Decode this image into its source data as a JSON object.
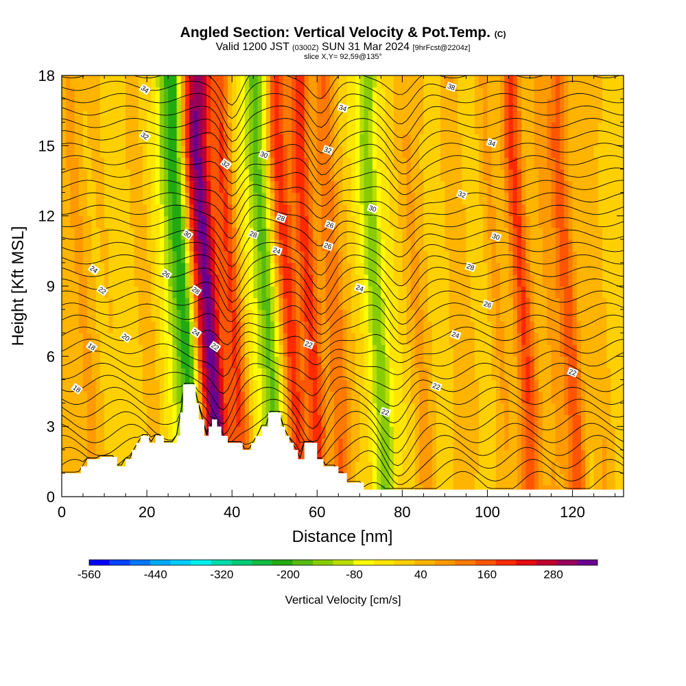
{
  "header": {
    "title": "Angled Section: Vertical Velocity & Pot.Temp.",
    "title_mark": "(C)",
    "valid_prefix": "Valid 1200 JST",
    "valid_zulu": "(0300Z)",
    "valid_date": "SUN 31 Mar 2024",
    "valid_fcst": "[9hrFcst@2204z]",
    "slice": "slice X,Y= 92,59@135°"
  },
  "chart_data": {
    "type": "heatmap",
    "xlabel": "Distance [nm]",
    "ylabel": "Height [Kft MSL]",
    "xlim": [
      0,
      132
    ],
    "ylim": [
      0,
      18
    ],
    "x_ticks": [
      "0",
      "20",
      "40",
      "60",
      "80",
      "100",
      "120"
    ],
    "x_tick_values": [
      0,
      20,
      40,
      60,
      80,
      100,
      120
    ],
    "y_ticks": [
      "0",
      "3",
      "6",
      "9",
      "12",
      "15",
      "18"
    ],
    "y_tick_values": [
      0,
      3,
      6,
      9,
      12,
      15,
      18
    ],
    "colorbar": {
      "label": "Vertical Velocity [cm/s]",
      "tick_labels": [
        "-560",
        "-440",
        "-320",
        "-200",
        "-80",
        "40",
        "160",
        "280"
      ],
      "tick_values": [
        -560,
        -440,
        -320,
        -200,
        -80,
        40,
        160,
        280
      ],
      "min": -560,
      "max": 360,
      "step": 40,
      "colors": [
        "#0000ff",
        "#0044ff",
        "#0077ff",
        "#00aaff",
        "#00ccff",
        "#00eeee",
        "#00ddaa",
        "#00cc77",
        "#11bb44",
        "#22aa11",
        "#55bb11",
        "#88cc00",
        "#bbdd00",
        "#ffff00",
        "#ffe600",
        "#ffd000",
        "#ffb400",
        "#ff9a00",
        "#ff7a00",
        "#ff5500",
        "#ff2a00",
        "#e60a10",
        "#c00030",
        "#99005a",
        "#6a0090"
      ]
    },
    "vertical_velocity_bands": [
      {
        "x": 3,
        "w": 0.2
      },
      {
        "x": 7,
        "w": 0.3
      },
      {
        "x": 11,
        "w": 0.15
      },
      {
        "x": 22,
        "w": 0.2
      },
      {
        "x": 28,
        "w": -0.6
      },
      {
        "x": 31,
        "w": -1.2
      },
      {
        "x": 34,
        "w": 1.0
      },
      {
        "x": 37,
        "w": 1.6
      },
      {
        "x": 42,
        "w": 0.9
      },
      {
        "x": 47,
        "w": -0.2
      },
      {
        "x": 50,
        "w": -1.0
      },
      {
        "x": 55,
        "w": 1.0
      },
      {
        "x": 60,
        "w": 1.1
      },
      {
        "x": 66,
        "w": 0.8
      },
      {
        "x": 71,
        "w": 0.0
      },
      {
        "x": 76,
        "w": -0.9
      },
      {
        "x": 86,
        "w": 0.4
      },
      {
        "x": 95,
        "w": 0.3
      },
      {
        "x": 104,
        "w": 0.3
      },
      {
        "x": 110,
        "w": 1.0
      },
      {
        "x": 116,
        "w": 0.4
      },
      {
        "x": 121,
        "w": 0.9
      },
      {
        "x": 128,
        "w": 0.3
      }
    ],
    "terrain_kft": [
      [
        0,
        1.0
      ],
      [
        4.5,
        1.0
      ],
      [
        4.5,
        1.3
      ],
      [
        6,
        1.3
      ],
      [
        6,
        1.6
      ],
      [
        9,
        1.6
      ],
      [
        9,
        1.7
      ],
      [
        13,
        1.7
      ],
      [
        13,
        1.3
      ],
      [
        15,
        1.3
      ],
      [
        15,
        1.6
      ],
      [
        16.5,
        1.6
      ],
      [
        16.5,
        2.0
      ],
      [
        17.5,
        2.0
      ],
      [
        17.5,
        2.3
      ],
      [
        18.5,
        2.3
      ],
      [
        18.5,
        2.6
      ],
      [
        20.5,
        2.6
      ],
      [
        20.5,
        2.3
      ],
      [
        22,
        2.3
      ],
      [
        22,
        2.6
      ],
      [
        24,
        2.6
      ],
      [
        24,
        2.3
      ],
      [
        27,
        2.3
      ],
      [
        27,
        2.6
      ],
      [
        27.8,
        2.6
      ],
      [
        27.8,
        3.6
      ],
      [
        28.5,
        3.6
      ],
      [
        28.5,
        4.8
      ],
      [
        31.5,
        4.8
      ],
      [
        31.5,
        4.0
      ],
      [
        32.2,
        4.0
      ],
      [
        32.2,
        3.3
      ],
      [
        33.5,
        3.3
      ],
      [
        33.5,
        2.6
      ],
      [
        34.5,
        2.6
      ],
      [
        34.5,
        3.0
      ],
      [
        35.3,
        3.0
      ],
      [
        35.3,
        3.3
      ],
      [
        36.5,
        3.3
      ],
      [
        36.5,
        3.0
      ],
      [
        37.5,
        3.0
      ],
      [
        37.5,
        2.6
      ],
      [
        39,
        2.6
      ],
      [
        39,
        2.3
      ],
      [
        42.5,
        2.3
      ],
      [
        42.5,
        2.0
      ],
      [
        44.5,
        2.0
      ],
      [
        44.5,
        2.3
      ],
      [
        45.5,
        2.3
      ],
      [
        45.5,
        2.6
      ],
      [
        47,
        2.6
      ],
      [
        47,
        3.0
      ],
      [
        48.5,
        3.0
      ],
      [
        48.5,
        3.6
      ],
      [
        51.5,
        3.6
      ],
      [
        51.5,
        3.0
      ],
      [
        52.5,
        3.0
      ],
      [
        52.5,
        2.6
      ],
      [
        53.5,
        2.6
      ],
      [
        53.5,
        2.3
      ],
      [
        54.5,
        2.3
      ],
      [
        54.5,
        2.0
      ],
      [
        55.5,
        2.0
      ],
      [
        55.5,
        1.6
      ],
      [
        57,
        1.6
      ],
      [
        57,
        2.3
      ],
      [
        60,
        2.3
      ],
      [
        60,
        1.6
      ],
      [
        61.5,
        1.6
      ],
      [
        61.5,
        1.3
      ],
      [
        65,
        1.3
      ],
      [
        65,
        1.0
      ],
      [
        67,
        1.0
      ],
      [
        67,
        0.6
      ],
      [
        71,
        0.6
      ],
      [
        71,
        0.3
      ],
      [
        132,
        0.3
      ]
    ],
    "isentrope_labels": [
      {
        "text": "34",
        "x": 19.5,
        "y": 17.4
      },
      {
        "text": "32",
        "x": 19.5,
        "y": 15.4
      },
      {
        "text": "30",
        "x": 29.5,
        "y": 11.2
      },
      {
        "text": "24",
        "x": 7.5,
        "y": 9.7
      },
      {
        "text": "26",
        "x": 24.5,
        "y": 9.5
      },
      {
        "text": "22",
        "x": 9.5,
        "y": 8.8
      },
      {
        "text": "28",
        "x": 31.5,
        "y": 8.8
      },
      {
        "text": "32",
        "x": 38.5,
        "y": 14.2
      },
      {
        "text": "30",
        "x": 47.5,
        "y": 14.6
      },
      {
        "text": "28",
        "x": 45,
        "y": 11.2
      },
      {
        "text": "28",
        "x": 51.5,
        "y": 11.9
      },
      {
        "text": "24",
        "x": 50.5,
        "y": 10.5
      },
      {
        "text": "20",
        "x": 15,
        "y": 6.8
      },
      {
        "text": "18",
        "x": 7,
        "y": 6.4
      },
      {
        "text": "24",
        "x": 31.5,
        "y": 7.0
      },
      {
        "text": "22",
        "x": 36,
        "y": 6.4
      },
      {
        "text": "18",
        "x": 3.5,
        "y": 4.6
      },
      {
        "text": "38",
        "x": 91.5,
        "y": 17.5
      },
      {
        "text": "34",
        "x": 66,
        "y": 16.6
      },
      {
        "text": "32",
        "x": 62.5,
        "y": 14.8
      },
      {
        "text": "34",
        "x": 101,
        "y": 15.1
      },
      {
        "text": "32",
        "x": 94,
        "y": 12.9
      },
      {
        "text": "30",
        "x": 73,
        "y": 12.3
      },
      {
        "text": "26",
        "x": 63,
        "y": 11.6
      },
      {
        "text": "26",
        "x": 62.5,
        "y": 10.7
      },
      {
        "text": "30",
        "x": 102,
        "y": 11.1
      },
      {
        "text": "28",
        "x": 96,
        "y": 9.8
      },
      {
        "text": "24",
        "x": 70,
        "y": 8.9
      },
      {
        "text": "26",
        "x": 100,
        "y": 8.2
      },
      {
        "text": "22",
        "x": 58,
        "y": 6.5
      },
      {
        "text": "24",
        "x": 92.5,
        "y": 6.9
      },
      {
        "text": "22",
        "x": 120,
        "y": 5.3
      },
      {
        "text": "22",
        "x": 88,
        "y": 4.7
      },
      {
        "text": "22",
        "x": 76,
        "y": 3.6
      }
    ]
  }
}
